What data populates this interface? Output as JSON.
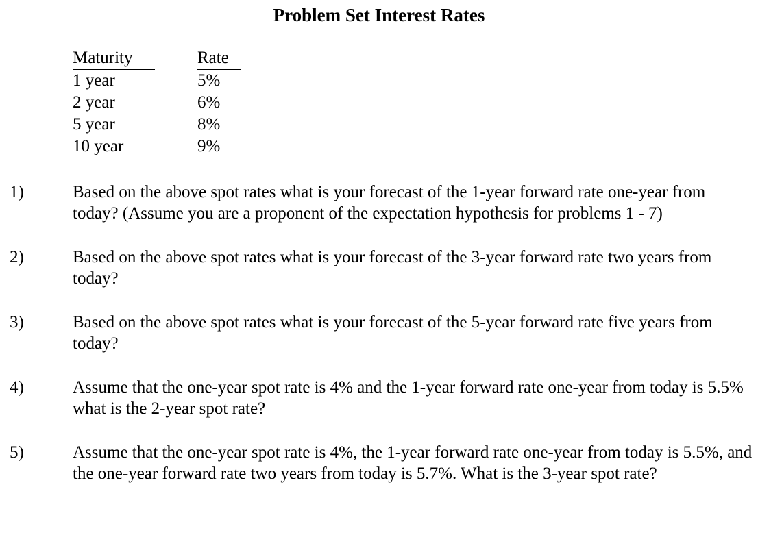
{
  "title": "Problem Set Interest Rates",
  "table": {
    "headers": [
      "Maturity",
      "Rate"
    ],
    "rows": [
      [
        "1 year",
        "5%"
      ],
      [
        "2 year",
        "6%"
      ],
      [
        "5 year",
        "8%"
      ],
      [
        "10 year",
        "9%"
      ]
    ]
  },
  "problems": [
    {
      "number": "1)",
      "text": "Based on the above spot rates what is your forecast of the 1-year forward rate one-year from today? (Assume you are a proponent of the expectation hypothesis for problems 1 - 7)"
    },
    {
      "number": "2)",
      "text": "Based on the above spot rates what is your forecast of the 3-year forward rate two years from today?"
    },
    {
      "number": "3)",
      "text": "Based on the above spot rates what is your forecast of the 5-year forward rate five years from today?"
    },
    {
      "number": "4)",
      "text": "Assume that the one-year spot rate is 4% and the 1-year forward rate one-year from today is 5.5% what is the 2-year spot rate?"
    },
    {
      "number": "5)",
      "text": "Assume that the one-year spot rate is 4%, the 1-year forward rate one-year from today is 5.5%, and the one-year forward rate two years from today is 5.7%. What is the 3-year spot rate?"
    }
  ],
  "colors": {
    "text": "#000000",
    "background": "#ffffff"
  }
}
